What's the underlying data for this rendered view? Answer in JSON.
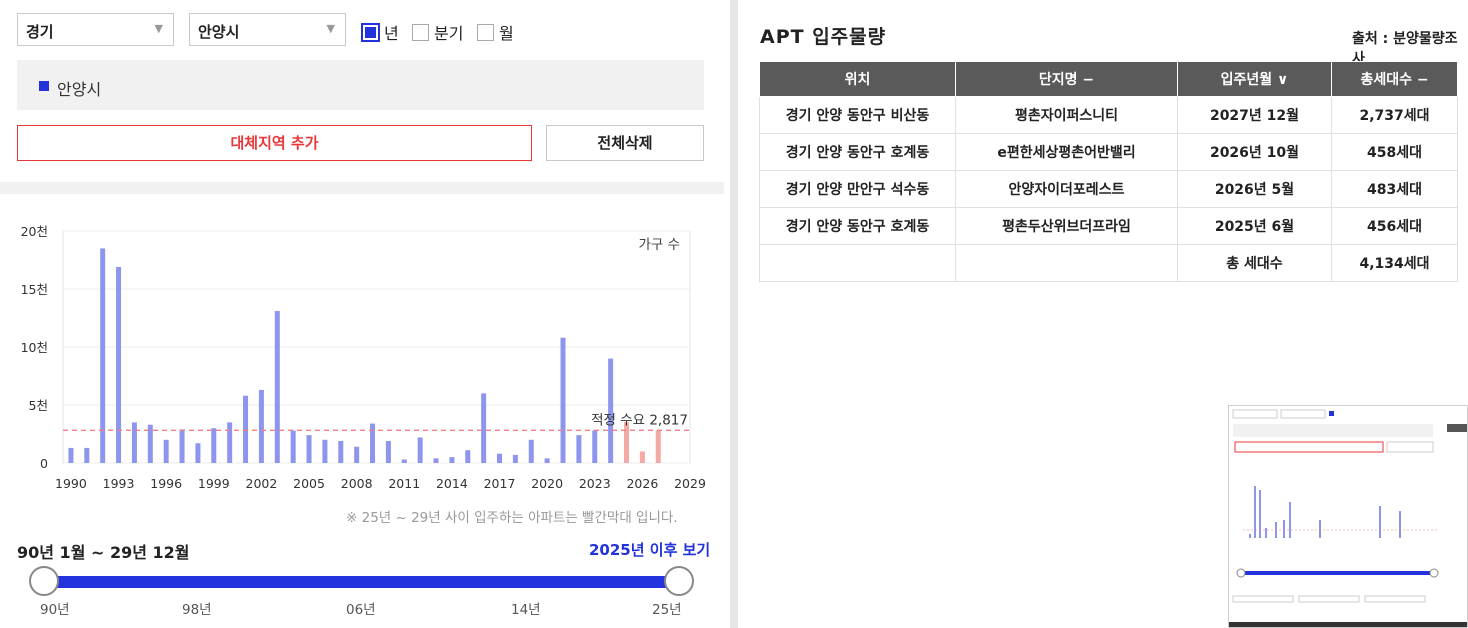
{
  "filters": {
    "province": "경기",
    "city": "안양시",
    "options": [
      {
        "label": "년",
        "checked": true
      },
      {
        "label": "분기",
        "checked": false
      },
      {
        "label": "월",
        "checked": false
      }
    ]
  },
  "region_chip": "안양시",
  "buttons": {
    "add_region": "대체지역 추가",
    "delete_all": "전체삭제"
  },
  "chart_data": {
    "type": "bar",
    "legend": "가구 수",
    "yticks": [
      "0",
      "5천",
      "10천",
      "15천",
      "20천"
    ],
    "ylim": [
      0,
      20000
    ],
    "xticks": [
      "1990",
      "1993",
      "1996",
      "1999",
      "2002",
      "2005",
      "2008",
      "2011",
      "2014",
      "2017",
      "2020",
      "2023",
      "2026",
      "2029"
    ],
    "x": [
      1990,
      1991,
      1992,
      1993,
      1994,
      1995,
      1996,
      1997,
      1998,
      1999,
      2000,
      2001,
      2002,
      2003,
      2004,
      2005,
      2006,
      2007,
      2008,
      2009,
      2010,
      2011,
      2012,
      2013,
      2014,
      2015,
      2016,
      2017,
      2018,
      2019,
      2020,
      2021,
      2022,
      2023,
      2024,
      2025,
      2026,
      2027
    ],
    "values": [
      1300,
      1300,
      18500,
      16900,
      3500,
      3300,
      2000,
      2900,
      1700,
      3000,
      3500,
      5800,
      6300,
      13100,
      2800,
      2400,
      2000,
      1900,
      1400,
      3400,
      1900,
      300,
      2200,
      400,
      500,
      1100,
      6000,
      800,
      700,
      2000,
      400,
      10800,
      2400,
      2800,
      9000,
      3500,
      1000,
      2800
    ],
    "highlight_from": 2025,
    "colors": {
      "normal": "#8d95ee",
      "highlight": "#f3aaa4"
    },
    "reference_line": {
      "value": 2817,
      "label": "적정 수요 2,817",
      "color": "#f08080"
    }
  },
  "note": "※ 25년 ~ 29년 사이 입주하는 아파트는 빨간막대 입니다.",
  "range": {
    "label": "90년 1월 ~ 29년 12월",
    "after_link": "2025년 이후 보기",
    "tick_labels": [
      "90년",
      "98년",
      "06년",
      "14년",
      "25년"
    ]
  },
  "apt": {
    "title": "APT 입주물량",
    "source": "출처 : 분양물량조사",
    "headers": [
      "위치",
      "단지명 −",
      "입주년월 ∨",
      "총세대수 −"
    ],
    "rows": [
      [
        "경기 안양 동안구 비산동",
        "평촌자이퍼스니티",
        "2027년 12월",
        "2,737세대"
      ],
      [
        "경기 안양 동안구 호계동",
        "e편한세상평촌어반밸리",
        "2026년 10월",
        "458세대"
      ],
      [
        "경기 안양 만안구 석수동",
        "안양자이더포레스트",
        "2026년 5월",
        "483세대"
      ],
      [
        "경기 안양 동안구 호계동",
        "평촌두산위브더프라임",
        "2025년 6월",
        "456세대"
      ]
    ],
    "total_label": "총 세대수",
    "total_value": "4,134세대"
  },
  "icons": {
    "dropdown": "chevron-down-icon",
    "region": "square-marker-icon"
  }
}
